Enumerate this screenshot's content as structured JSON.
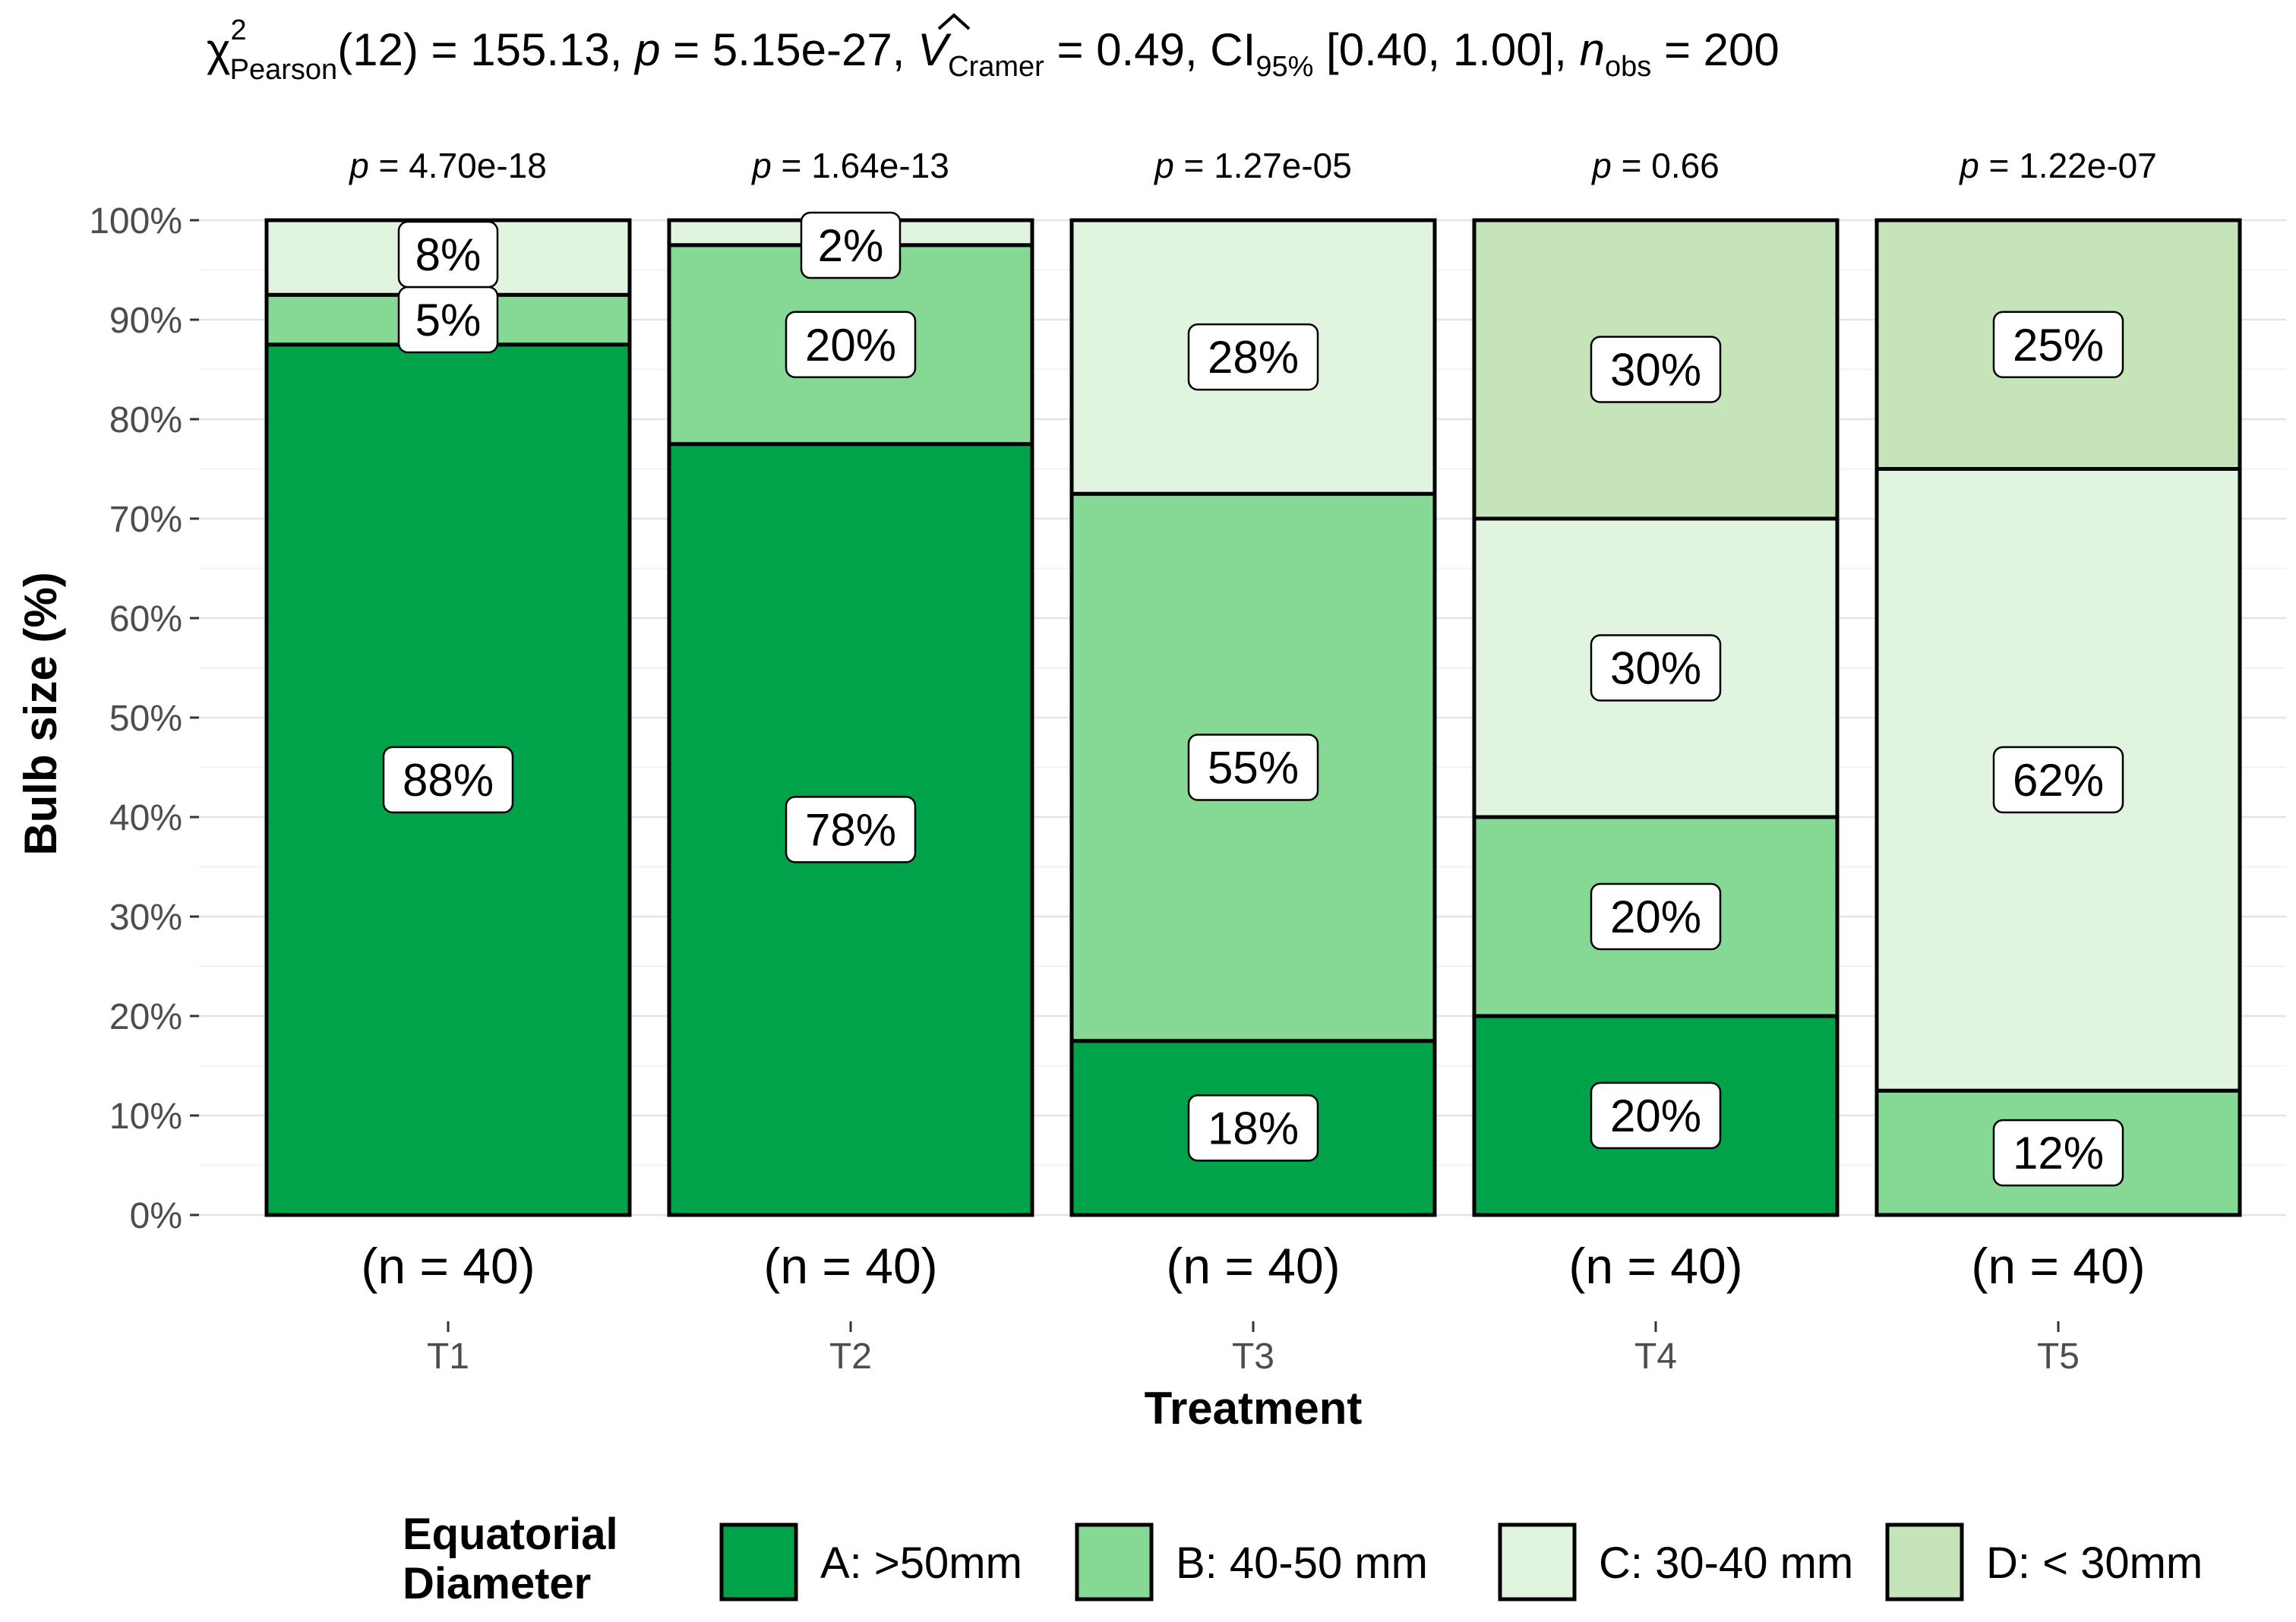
{
  "chart_data": {
    "type": "bar",
    "stacked": true,
    "subtitle": {
      "chi_symbol": "χ",
      "chi_sup": "2",
      "chi_sub": "Pearson",
      "df_stat": "(12) = 155.13, ",
      "p_italic": "p",
      "p_value": " = 5.15e-27, ",
      "v_hat": "V",
      "v_sub": "Cramer",
      "v_value": " = 0.49, CI",
      "ci_sub": "95%",
      "ci_value": " [0.40, 1.00], ",
      "n_italic": "n",
      "n_sub": "obs",
      "n_value": " = 200"
    },
    "xlabel": "Treatment",
    "ylabel": "Bulb size (%)",
    "ylim": [
      0,
      100
    ],
    "y_ticks": [
      "0%",
      "10%",
      "20%",
      "30%",
      "40%",
      "50%",
      "60%",
      "70%",
      "80%",
      "90%",
      "100%"
    ],
    "categories": [
      "T1",
      "T2",
      "T3",
      "T4",
      "T5"
    ],
    "p_prefix": "p",
    "p_values": [
      " = 4.70e-18",
      " = 1.64e-13",
      " = 1.27e-05",
      " = 0.66",
      " = 1.22e-07"
    ],
    "n_labels": [
      "(n = 40)",
      "(n = 40)",
      "(n = 40)",
      "(n = 40)",
      "(n = 40)"
    ],
    "legend_title": [
      "Equatorial",
      "Diameter"
    ],
    "legend_position": "bottom",
    "series": [
      {
        "name": "A: >50mm",
        "color": "#00a34a",
        "values": [
          87.5,
          77.5,
          17.5,
          20,
          0
        ],
        "labels": [
          "88%",
          "78%",
          "18%",
          "20%",
          ""
        ]
      },
      {
        "name": "B: 40-50 mm",
        "color": "#85d995",
        "values": [
          5,
          20,
          55,
          20,
          12.5
        ],
        "labels": [
          "5%",
          "20%",
          "55%",
          "20%",
          "12%"
        ]
      },
      {
        "name": "C: 30-40 mm",
        "color": "#e1f4e0",
        "values": [
          7.5,
          2.5,
          27.5,
          30,
          62.5
        ],
        "labels": [
          "8%",
          "2%",
          "28%",
          "30%",
          "62%"
        ]
      },
      {
        "name": "D: < 30mm",
        "color": "#c5e4b9",
        "values": [
          0,
          0,
          0,
          30,
          25
        ],
        "labels": [
          "",
          "",
          "",
          "30%",
          "25%"
        ]
      }
    ]
  }
}
